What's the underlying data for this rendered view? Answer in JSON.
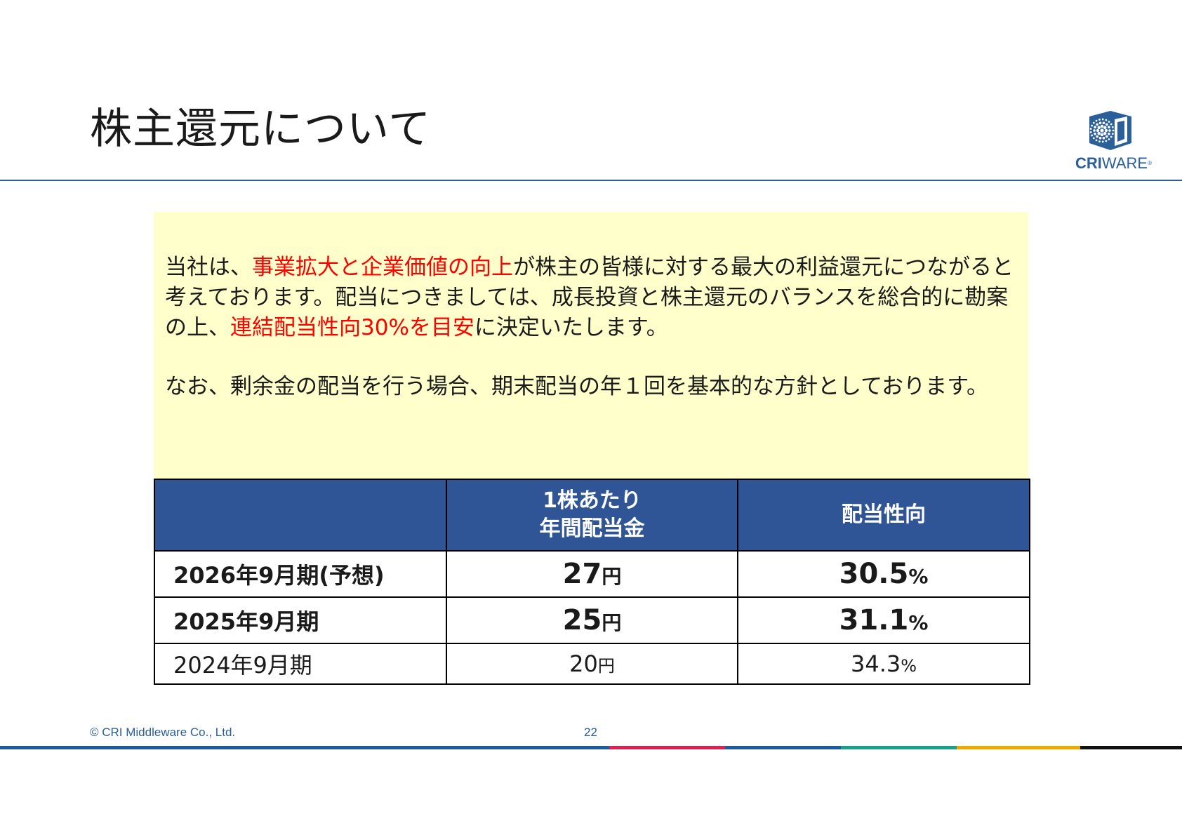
{
  "title": "株主還元について",
  "logo": {
    "brand_bold": "CRI",
    "brand_rest": "WARE",
    "reg_mark": "®",
    "color": "#2a5f9a"
  },
  "policy": {
    "p1_a": "当社は、",
    "p1_red1": "事業拡大と企業価値の向上",
    "p1_b": "が株主の皆様に対する最大の利益還元につながると考えております。配当につきましては、成長投資と株主還元のバランスを総合的に勘案の上、",
    "p1_red2": "連結配当性向30%を目安",
    "p1_c": "に決定いたします。",
    "p2": "なお、剰余金の配当を行う場合、期末配当の年１回を基本的な方針としております。",
    "background": "#ffffcc",
    "highlight_color": "#ff0000"
  },
  "table": {
    "header": {
      "col0": "",
      "col1_line1": "1株あたり",
      "col1_line2": "年間配当金",
      "col2": "配当性向",
      "background": "#2f5597"
    },
    "rows": [
      {
        "period": "2026年9月期(予想)",
        "dividend": "27",
        "dividend_unit": "円",
        "payout": "30.5",
        "payout_unit": "%"
      },
      {
        "period": "2025年9月期",
        "dividend": "25",
        "dividend_unit": "円",
        "payout": "31.1",
        "payout_unit": "%"
      },
      {
        "period": "2024年9月期",
        "dividend": "20",
        "dividend_unit": "円",
        "payout": "34.3",
        "payout_unit": "%"
      }
    ]
  },
  "footer": {
    "copyright": "© CRI Middleware Co., Ltd.",
    "page_number": "22",
    "bar_colors": [
      "#1c5aa6",
      "#e0204e",
      "#1c5aa6",
      "#17a08a",
      "#f0a800",
      "#111111"
    ]
  }
}
